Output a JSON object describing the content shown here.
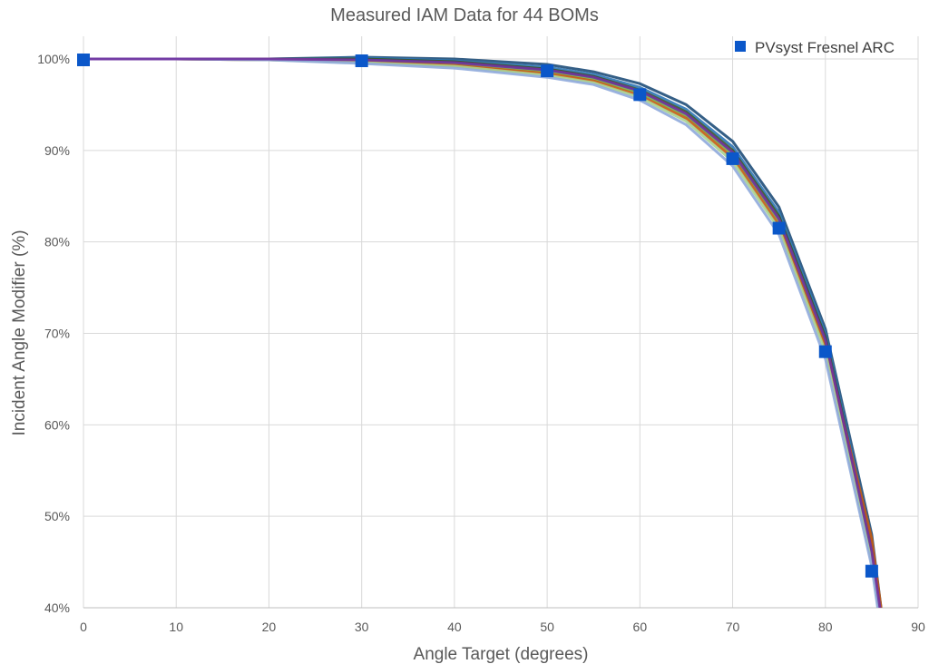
{
  "chart_data": {
    "type": "line",
    "title": "Measured IAM Data for 44 BOMs",
    "xlabel": "Angle Target (degrees)",
    "ylabel": "Incident Angle Modifier (%)",
    "xlim": [
      0,
      90
    ],
    "ylim": [
      40,
      100
    ],
    "x_ticks": [
      "0",
      "10",
      "20",
      "30",
      "40",
      "50",
      "60",
      "70",
      "80",
      "90"
    ],
    "y_ticks": [
      "40%",
      "50%",
      "60%",
      "70%",
      "80%",
      "90%",
      "100%"
    ],
    "grid": true,
    "legend_position": "top-right",
    "bom_colors": [
      "#1f4e79",
      "#2e75b6",
      "#375623",
      "#70ad47",
      "#c55a11",
      "#a9d18e",
      "#8faadc",
      "#7030a0",
      "#4ea3a8",
      "#b4a7d6",
      "#5b9bd5",
      "#264478"
    ],
    "bom_series": [
      {
        "x": [
          0,
          10,
          20,
          30,
          40,
          50,
          55,
          60,
          65,
          70,
          75,
          80,
          85,
          86
        ],
        "y": [
          100.0,
          100.0,
          100.0,
          100.2,
          100.0,
          99.4,
          98.6,
          97.3,
          95.0,
          91.0,
          83.8,
          70.5,
          48.0,
          40.0
        ]
      },
      {
        "x": [
          0,
          10,
          20,
          30,
          40,
          50,
          55,
          60,
          65,
          70,
          75,
          80,
          85,
          86
        ],
        "y": [
          100.0,
          100.0,
          100.0,
          100.1,
          99.8,
          99.1,
          98.3,
          96.9,
          94.5,
          90.4,
          83.2,
          70.0,
          47.0,
          39.5
        ]
      },
      {
        "x": [
          0,
          10,
          20,
          30,
          40,
          50,
          55,
          60,
          65,
          70,
          75,
          80,
          85,
          86
        ],
        "y": [
          100.0,
          100.0,
          100.0,
          100.0,
          99.7,
          98.9,
          98.1,
          96.6,
          94.2,
          90.0,
          82.8,
          69.6,
          46.5,
          39.0
        ]
      },
      {
        "x": [
          0,
          10,
          20,
          30,
          40,
          50,
          55,
          60,
          65,
          70,
          75,
          80,
          85,
          86
        ],
        "y": [
          100.0,
          100.0,
          100.0,
          99.8,
          99.5,
          98.6,
          97.8,
          96.3,
          93.8,
          89.6,
          82.3,
          69.0,
          46.0,
          38.5
        ]
      },
      {
        "x": [
          0,
          10,
          20,
          30,
          40,
          50,
          55,
          60,
          65,
          70,
          75,
          80,
          85,
          86
        ],
        "y": [
          100.0,
          100.0,
          99.9,
          99.7,
          99.3,
          98.4,
          97.6,
          96.0,
          93.5,
          89.2,
          81.8,
          68.5,
          47.5,
          40.0
        ]
      },
      {
        "x": [
          0,
          10,
          20,
          30,
          40,
          50,
          55,
          60,
          65,
          70,
          75,
          80,
          85,
          86
        ],
        "y": [
          100.0,
          100.0,
          99.9,
          99.6,
          99.2,
          98.2,
          97.4,
          95.8,
          93.2,
          88.8,
          81.4,
          68.0,
          45.0,
          38.0
        ]
      },
      {
        "x": [
          0,
          10,
          20,
          30,
          40,
          50,
          55,
          60,
          65,
          70,
          75,
          80,
          85,
          86
        ],
        "y": [
          100.0,
          100.0,
          99.9,
          99.5,
          99.0,
          98.0,
          97.2,
          95.5,
          92.8,
          88.3,
          80.8,
          67.2,
          44.5,
          37.5
        ]
      },
      {
        "x": [
          0,
          10,
          20,
          30,
          40,
          50,
          55,
          60,
          65,
          70,
          75,
          80,
          85,
          86
        ],
        "y": [
          100.0,
          100.0,
          100.0,
          99.9,
          99.6,
          98.8,
          98.0,
          96.5,
          94.0,
          89.8,
          82.5,
          69.3,
          46.2,
          39.2
        ]
      }
    ],
    "series": [
      {
        "name": "PVsyst Fresnel ARC",
        "x": [
          0,
          30,
          50,
          60,
          70,
          75,
          80,
          85
        ],
        "y": [
          99.9,
          99.8,
          98.7,
          96.1,
          89.1,
          81.5,
          68.0,
          44.0
        ],
        "color": "#0b57c9",
        "marker": "square"
      }
    ]
  }
}
